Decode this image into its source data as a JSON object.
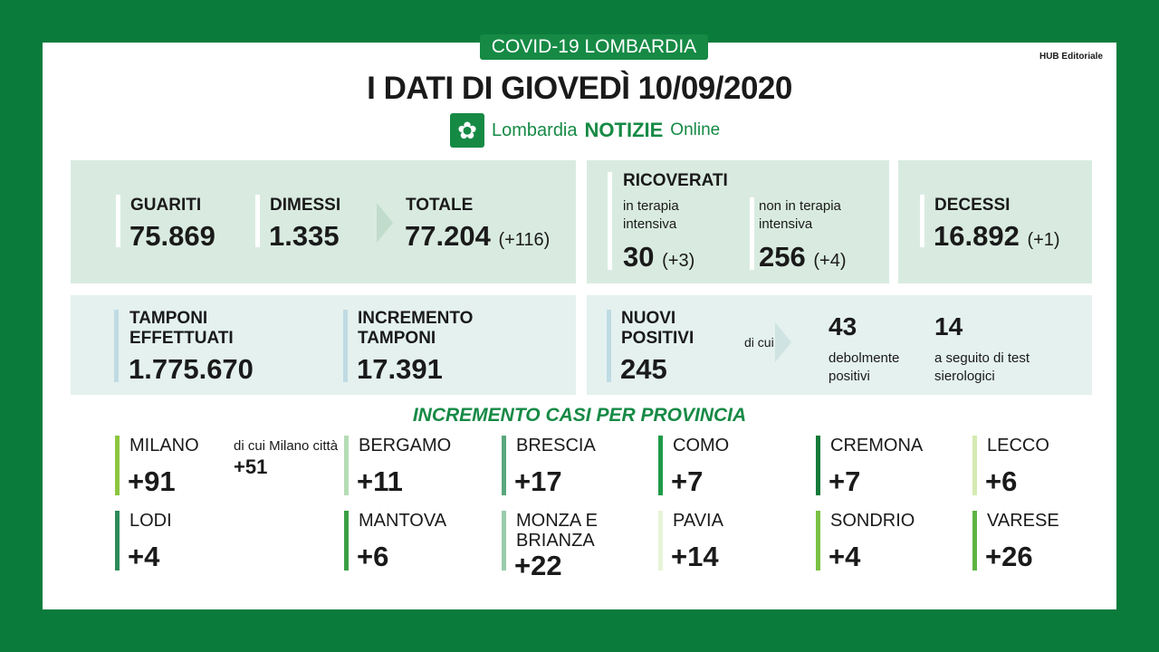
{
  "header": {
    "tag": "COVID-19 LOMBARDIA",
    "hub": "HUB Editoriale",
    "title": "I DATI DI GIOVEDÌ 10/09/2020",
    "logo": {
      "part1": "Lombardia",
      "part2": "NOTIZIE",
      "part3": "Online"
    }
  },
  "guariti": {
    "label": "GUARITI",
    "value": "75.869"
  },
  "dimessi": {
    "label": "DIMESSI",
    "value": "1.335"
  },
  "totale": {
    "label": "TOTALE",
    "value": "77.204",
    "delta": "(+116)"
  },
  "ricoverati": {
    "label": "RICOVERATI",
    "ti_label": "in terapia intensiva",
    "ti_value": "30",
    "ti_delta": "(+3)",
    "nti_label": "non in terapia intensiva",
    "nti_value": "256",
    "nti_delta": "(+4)"
  },
  "decessi": {
    "label": "DECESSI",
    "value": "16.892",
    "delta": "(+1)"
  },
  "tamponi": {
    "label": "TAMPONI EFFETTUATI",
    "value": "1.775.670"
  },
  "incremento": {
    "label": "INCREMENTO TAMPONI",
    "value": "17.391"
  },
  "positivi": {
    "label": "NUOVI POSITIVI",
    "value": "245",
    "dicui": "di cui",
    "a_value": "43",
    "a_label": "debolmente positivi",
    "b_value": "14",
    "b_label": "a seguito di test sierologici"
  },
  "province": {
    "title": "INCREMENTO CASI PER PROVINCIA",
    "milano_note": "di cui Milano città",
    "milano_city": "+51",
    "items": [
      {
        "name": "MILANO",
        "value": "+91",
        "color": "#8cc63f"
      },
      {
        "name": "BERGAMO",
        "value": "+11",
        "color": "#b5dcb5"
      },
      {
        "name": "BRESCIA",
        "value": "+17",
        "color": "#5aa77c"
      },
      {
        "name": "COMO",
        "value": "+7",
        "color": "#1f9a48"
      },
      {
        "name": "CREMONA",
        "value": "+7",
        "color": "#137a3a"
      },
      {
        "name": "LECCO",
        "value": "+6",
        "color": "#d4ebb0"
      },
      {
        "name": "LODI",
        "value": "+4",
        "color": "#2e8a5a"
      },
      {
        "name": "MANTOVA",
        "value": "+6",
        "color": "#3aa043"
      },
      {
        "name": "MONZA E BRIANZA",
        "value": "+22",
        "color": "#98ccaa"
      },
      {
        "name": "PAVIA",
        "value": "+14",
        "color": "#e8f4d8"
      },
      {
        "name": "SONDRIO",
        "value": "+4",
        "color": "#7bc043"
      },
      {
        "name": "VARESE",
        "value": "+26",
        "color": "#5db443"
      }
    ]
  }
}
